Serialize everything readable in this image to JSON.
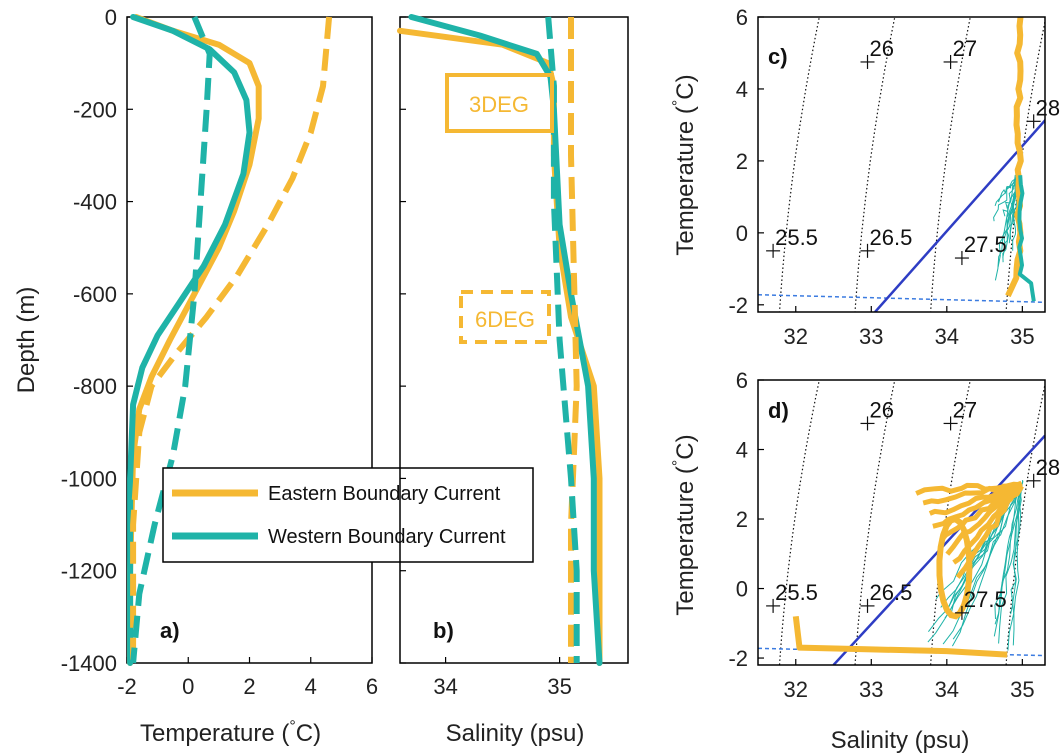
{
  "colors": {
    "eastern": "#F5B833",
    "western": "#1FB3A8",
    "line": "#2E3DC4",
    "freeze": "#3B7BE0",
    "isopycnal": "#111111",
    "axes": "#000000"
  },
  "chart_data": [
    {
      "panel": "a)",
      "type": "line",
      "xlabel": "Temperature (°C)",
      "ylabel": "Depth (m)",
      "xlim": [
        -2,
        6
      ],
      "ylim": [
        -1400,
        0
      ],
      "xticks": [
        "-2",
        "0",
        "2",
        "4",
        "6"
      ],
      "yticks": [
        "0",
        "-200",
        "-400",
        "-600",
        "-800",
        "-1000",
        "-1200",
        "-1400"
      ],
      "series": [
        {
          "name": "Eastern Boundary Current",
          "style": "solid",
          "color": "#F5B833",
          "x": [
            -1.7,
            -0.5,
            1.0,
            2.0,
            2.3,
            2.3,
            2.0,
            1.5,
            1.0,
            0.2,
            -0.6,
            -1.2,
            -1.6,
            -1.8,
            -1.9,
            -1.9
          ],
          "y": [
            0,
            -30,
            -60,
            -100,
            -150,
            -220,
            -320,
            -420,
            -500,
            -600,
            -700,
            -780,
            -850,
            -950,
            -1200,
            -1400
          ]
        },
        {
          "name": "Western Boundary Current",
          "style": "solid",
          "color": "#1FB3A8",
          "x": [
            -1.8,
            -0.5,
            0.7,
            1.5,
            1.9,
            2.0,
            1.8,
            1.2,
            0.5,
            -0.3,
            -1.0,
            -1.5,
            -1.8,
            -1.9,
            -1.9
          ],
          "y": [
            0,
            -30,
            -70,
            -120,
            -180,
            -250,
            -340,
            -450,
            -540,
            -620,
            -690,
            -760,
            -840,
            -1000,
            -1400
          ]
        },
        {
          "style": "dashed",
          "color": "#F5B833",
          "x": [
            4.6,
            4.4,
            4.0,
            3.4,
            2.6,
            1.6,
            0.6,
            -0.4,
            -1.2,
            -1.6,
            -1.8,
            -1.8
          ],
          "y": [
            0,
            -150,
            -250,
            -350,
            -450,
            -560,
            -650,
            -730,
            -800,
            -900,
            -1100,
            -1400
          ]
        },
        {
          "style": "dashed",
          "color": "#1FB3A8",
          "x": [
            0.2,
            0.7,
            0.6,
            0.4,
            0.2,
            -0.1,
            -0.5,
            -1.1,
            -1.6,
            -1.8
          ],
          "y": [
            0,
            -80,
            -200,
            -400,
            -600,
            -800,
            -950,
            -1100,
            -1250,
            -1400
          ]
        }
      ],
      "legend": {
        "entries": [
          "Eastern Boundary Current",
          "Western Boundary Current"
        ],
        "location": "lower-middle"
      }
    },
    {
      "panel": "b)",
      "type": "line",
      "xlabel": "Salinity (psu)",
      "xlim": [
        33.6,
        35.6
      ],
      "ylim": [
        -1400,
        0
      ],
      "xticks": [
        "34",
        "35"
      ],
      "annotations": [
        {
          "text": "3DEG",
          "style": "solid-box"
        },
        {
          "text": "6DEG",
          "style": "dashed-box"
        }
      ],
      "series": [
        {
          "name": "Eastern Boundary Current",
          "style": "solid",
          "color": "#F5B833",
          "x": [
            33.6,
            34.5,
            34.9,
            34.95,
            34.95,
            35.0,
            35.1,
            35.3,
            35.35,
            35.35
          ],
          "y": [
            -30,
            -60,
            -100,
            -150,
            -300,
            -500,
            -650,
            -800,
            -1000,
            -1400
          ]
        },
        {
          "name": "Western Boundary Current",
          "style": "solid",
          "color": "#1FB3A8",
          "x": [
            33.7,
            34.3,
            34.8,
            34.92,
            34.95,
            35.0,
            35.1,
            35.25,
            35.3,
            35.3,
            35.35
          ],
          "y": [
            0,
            -40,
            -80,
            -130,
            -200,
            -450,
            -600,
            -800,
            -1000,
            -1200,
            -1400
          ]
        },
        {
          "style": "dashed",
          "color": "#F5B833",
          "x": [
            35.1,
            35.1,
            35.15,
            35.1,
            35.1
          ],
          "y": [
            0,
            -300,
            -800,
            -1100,
            -1400
          ]
        },
        {
          "style": "dashed",
          "color": "#1FB3A8",
          "x": [
            34.9,
            34.95,
            34.95,
            35.0,
            35.1,
            35.15,
            35.15
          ],
          "y": [
            0,
            -150,
            -400,
            -700,
            -1000,
            -1200,
            -1400
          ]
        }
      ]
    },
    {
      "panel": "c)",
      "type": "scatter",
      "xlabel": "",
      "ylabel": "Temperature (°C)",
      "xlim": [
        31.5,
        35.3
      ],
      "ylim": [
        -2.2,
        6
      ],
      "xticks": [
        "32",
        "33",
        "34",
        "35"
      ],
      "yticks": [
        "6",
        "4",
        "2",
        "0",
        "-2"
      ],
      "density_labels": [
        "26",
        "27",
        "28",
        "25.5",
        "26.5",
        "27.5"
      ]
    },
    {
      "panel": "d)",
      "type": "scatter",
      "xlabel": "Salinity (psu)",
      "ylabel": "Temperature (°C)",
      "xlim": [
        31.5,
        35.3
      ],
      "ylim": [
        -2.2,
        6
      ],
      "xticks": [
        "32",
        "33",
        "34",
        "35"
      ],
      "yticks": [
        "6",
        "4",
        "2",
        "0",
        "-2"
      ],
      "density_labels": [
        "26",
        "27",
        "28",
        "25.5",
        "26.5",
        "27.5"
      ]
    }
  ],
  "figure": {
    "a_xlabel": "Temperature (",
    "a_xlabel_deg": "°",
    "a_xlabel_end": "C)",
    "a_ylabel": "Depth (m)",
    "b_xlabel": "Salinity (psu)",
    "d_xlabel": "Salinity (psu)",
    "ts_ylabel": "Temperature (",
    "ts_ylabel_deg": "°",
    "ts_ylabel_end": "C)",
    "panel_a": "a)",
    "panel_b": "b)",
    "panel_c": "c)",
    "panel_d": "d)",
    "box_3deg": "3DEG",
    "box_6deg": "6DEG",
    "legend_eastern": "Eastern Boundary Current",
    "legend_western": "Western Boundary Current"
  }
}
